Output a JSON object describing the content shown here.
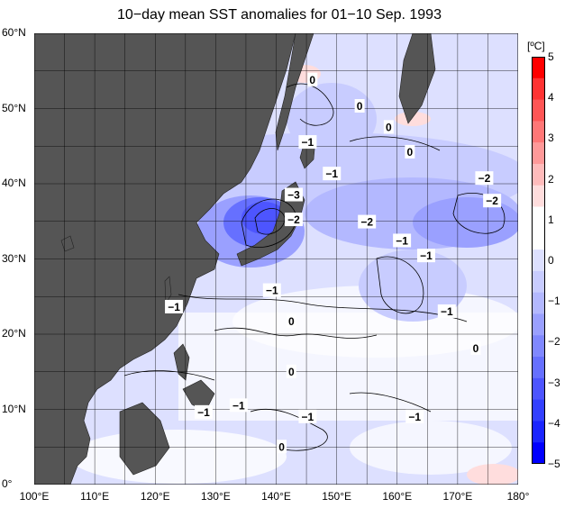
{
  "title": "10−day mean SST anomalies for 01−10 Sep. 1993",
  "y_axis": {
    "ticks": [
      "60°N",
      "50°N",
      "40°N",
      "30°N",
      "20°N",
      "10°N",
      "0°"
    ]
  },
  "x_axis": {
    "ticks": [
      "100°E",
      "110°E",
      "120°E",
      "130°E",
      "140°E",
      "150°E",
      "160°E",
      "170°E",
      "180°"
    ]
  },
  "colorbar": {
    "unit": "[ºC]",
    "labels": [
      "5",
      "4",
      "3",
      "2",
      "1",
      "0",
      "−1",
      "−2",
      "−3",
      "−4",
      "−5"
    ],
    "colors": [
      "#ff0000",
      "#ff3333",
      "#ff5555",
      "#ff7777",
      "#ff9999",
      "#ffbbbb",
      "#ffdddd",
      "#ffffff",
      "#ffffff",
      "#dde0ff",
      "#c8ccff",
      "#b3b8ff",
      "#9aa0ff",
      "#8088ff",
      "#6670ff",
      "#4d55ff",
      "#3340ff",
      "#1a25ff",
      "#0000ff"
    ]
  },
  "land_color": "#555555",
  "contour_labels": [
    {
      "text": "0",
      "lon": 146.0,
      "lat": 53.8
    },
    {
      "text": "0",
      "lon": 153.8,
      "lat": 50.3
    },
    {
      "text": "0",
      "lon": 158.6,
      "lat": 47.5
    },
    {
      "text": "0",
      "lon": 162.1,
      "lat": 44.2
    },
    {
      "text": "−1",
      "lon": 145.2,
      "lat": 45.5
    },
    {
      "text": "−1",
      "lon": 149.2,
      "lat": 41.3
    },
    {
      "text": "−3",
      "lon": 142.9,
      "lat": 38.5
    },
    {
      "text": "−2",
      "lon": 142.9,
      "lat": 35.2
    },
    {
      "text": "−2",
      "lon": 155.0,
      "lat": 34.9
    },
    {
      "text": "−1",
      "lon": 160.8,
      "lat": 32.4
    },
    {
      "text": "−1",
      "lon": 164.8,
      "lat": 30.4
    },
    {
      "text": "−2",
      "lon": 174.4,
      "lat": 40.7
    },
    {
      "text": "−2",
      "lon": 175.7,
      "lat": 37.7
    },
    {
      "text": "−1",
      "lon": 139.3,
      "lat": 25.8
    },
    {
      "text": "−1",
      "lon": 123.1,
      "lat": 23.6
    },
    {
      "text": "−1",
      "lon": 168.2,
      "lat": 23.0
    },
    {
      "text": "0",
      "lon": 142.5,
      "lat": 21.7
    },
    {
      "text": "0",
      "lon": 173.0,
      "lat": 18.1
    },
    {
      "text": "0",
      "lon": 142.5,
      "lat": 15.0
    },
    {
      "text": "−1",
      "lon": 133.8,
      "lat": 10.5
    },
    {
      "text": "−1",
      "lon": 128.0,
      "lat": 9.6
    },
    {
      "text": "−1",
      "lon": 145.2,
      "lat": 9.0
    },
    {
      "text": "−1",
      "lon": 162.9,
      "lat": 9.0
    },
    {
      "text": "0",
      "lon": 140.9,
      "lat": 5.0
    }
  ]
}
